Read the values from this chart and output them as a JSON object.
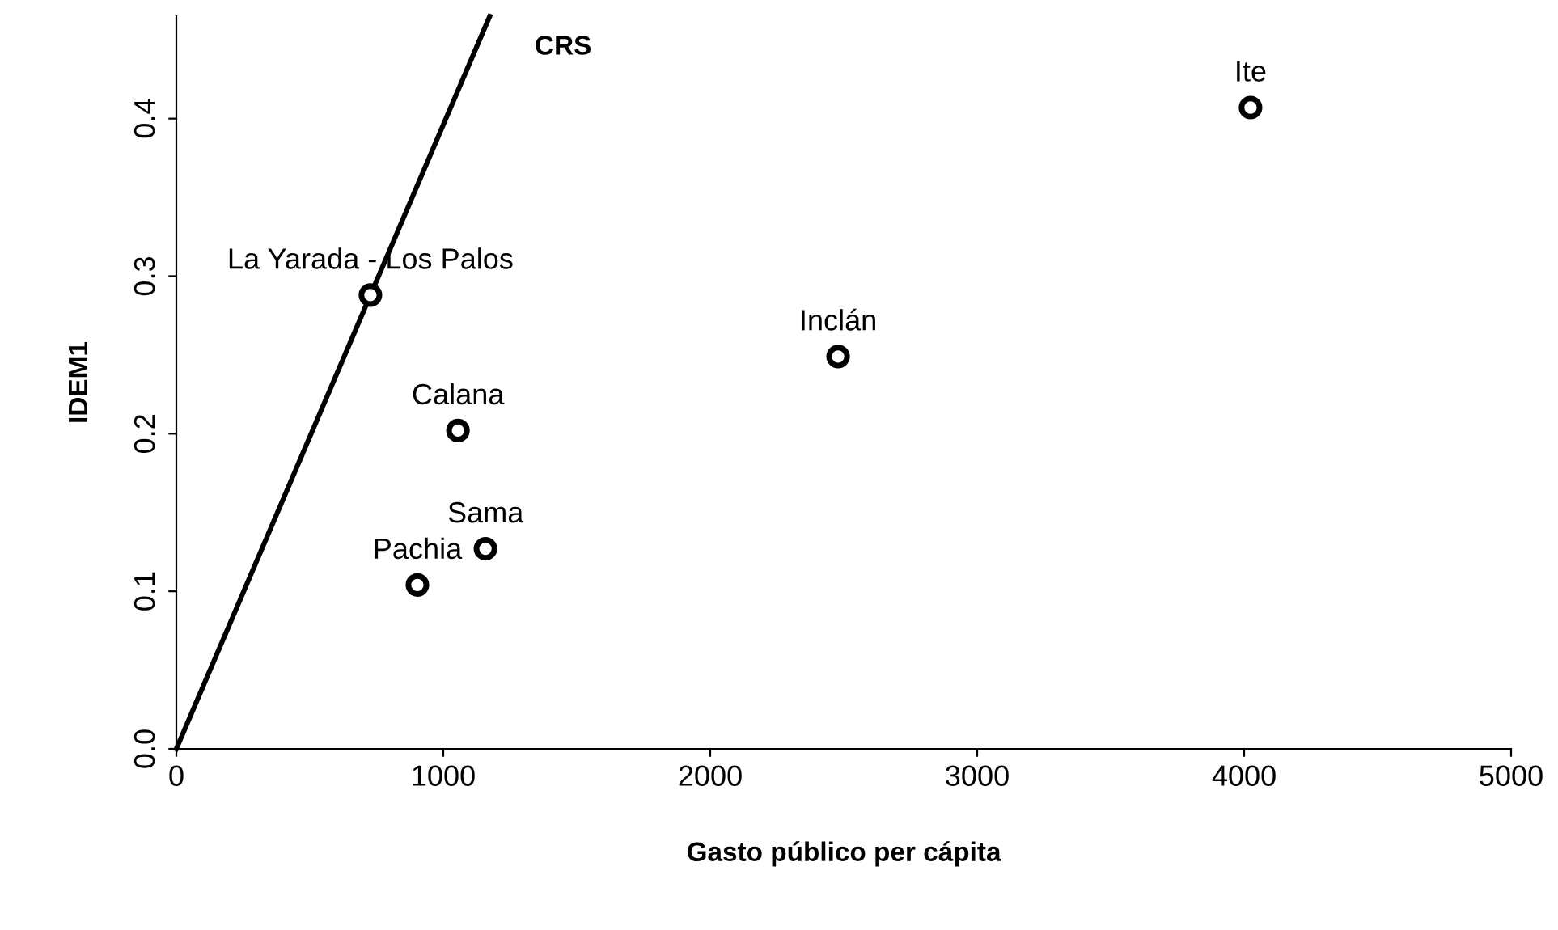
{
  "chart_data": {
    "type": "scatter",
    "xlabel": "Gasto público per cápita",
    "ylabel": "IDEM1",
    "xlim": [
      0,
      5000
    ],
    "ylim": [
      0,
      0.465
    ],
    "xticks": [
      0,
      1000,
      2000,
      3000,
      4000,
      5000
    ],
    "yticks": [
      {
        "value": 0,
        "label": "0.0"
      },
      0.1,
      0.2,
      0.3,
      0.4
    ],
    "grid": false,
    "legend": false,
    "series": [
      {
        "marker": "circle",
        "color": "#000000",
        "x": [
          727,
          1055,
          1158,
          903,
          2479,
          4024
        ],
        "values": [
          0.288,
          0.202,
          0.127,
          0.104,
          0.249,
          0.407
        ],
        "value_labels": [
          "La Yarada - Los Palos",
          "Calana",
          "Sama",
          "Pachia",
          "Inclán",
          "Ite"
        ]
      },
      {
        "type": "line",
        "name": "CRS",
        "marker": "none",
        "color": "#000000",
        "line_style": "solid",
        "x": [
          0,
          1174
        ],
        "values": [
          0,
          0.465
        ]
      }
    ]
  }
}
